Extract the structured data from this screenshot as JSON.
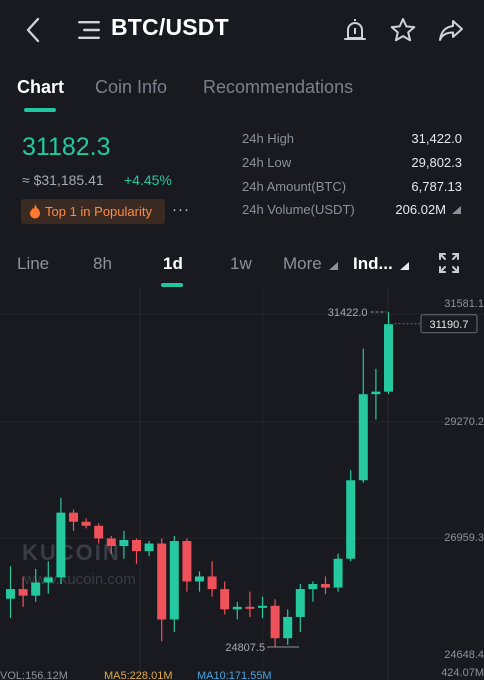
{
  "header": {
    "pair": "BTC/USDT",
    "icons": [
      "back-icon",
      "menu-icon",
      "alert-icon",
      "star-icon",
      "share-icon"
    ]
  },
  "tabs": [
    {
      "label": "Chart",
      "active": true
    },
    {
      "label": "Coin Info",
      "active": false
    },
    {
      "label": "Recommendations",
      "active": false
    }
  ],
  "price": {
    "last": "31182.3",
    "approx": "≈ $31,185.41",
    "change": "+4.45%",
    "badge": "Top 1 in Popularity",
    "more": "···"
  },
  "stats": [
    {
      "label": "24h High",
      "value": "31,422.0"
    },
    {
      "label": "24h Low",
      "value": "29,802.3"
    },
    {
      "label": "24h Amount(BTC)",
      "value": "6,787.13"
    },
    {
      "label": "24h Volume(USDT)",
      "value": "206.02M"
    }
  ],
  "intervals": [
    {
      "label": "Line"
    },
    {
      "label": "8h"
    },
    {
      "label": "1d",
      "active": true
    },
    {
      "label": "1w"
    },
    {
      "label": "More"
    },
    {
      "label": "Ind..."
    }
  ],
  "colors": {
    "up": "#24c9a0",
    "down": "#f0525c",
    "bg": "#181a20",
    "accent": "#1fc6a0"
  },
  "chart_data": {
    "type": "candlestick",
    "price_axis": [
      "31581.1",
      "29270.2",
      "26959.3",
      "24648.4"
    ],
    "current_price_label": "31190.7",
    "high_marker": "31422.0",
    "low_marker": "24807.5",
    "volume_axis_label": "424.07M",
    "watermark_brand": "KUCOIN",
    "watermark_url": "www.kucoin.com",
    "indicators": {
      "vol": "VOL:156.12M",
      "ma5": "MA5:228.01M",
      "ma10": "MA10:171.55M"
    },
    "candles": [
      {
        "o": 25760,
        "h": 26400,
        "l": 25380,
        "c": 25950
      },
      {
        "o": 25950,
        "h": 26200,
        "l": 25600,
        "c": 25820
      },
      {
        "o": 25820,
        "h": 26350,
        "l": 25700,
        "c": 26080
      },
      {
        "o": 26080,
        "h": 26500,
        "l": 25860,
        "c": 26180
      },
      {
        "o": 26180,
        "h": 27750,
        "l": 26050,
        "c": 27460
      },
      {
        "o": 27460,
        "h": 27520,
        "l": 27100,
        "c": 27280
      },
      {
        "o": 27280,
        "h": 27350,
        "l": 27150,
        "c": 27200
      },
      {
        "o": 27200,
        "h": 27250,
        "l": 26850,
        "c": 26950
      },
      {
        "o": 26950,
        "h": 27000,
        "l": 26650,
        "c": 26800
      },
      {
        "o": 26800,
        "h": 27100,
        "l": 26550,
        "c": 26920
      },
      {
        "o": 26920,
        "h": 26950,
        "l": 26450,
        "c": 26700
      },
      {
        "o": 26700,
        "h": 26900,
        "l": 26600,
        "c": 26850
      },
      {
        "o": 26850,
        "h": 26950,
        "l": 24920,
        "c": 25350
      },
      {
        "o": 25350,
        "h": 27000,
        "l": 25100,
        "c": 26900
      },
      {
        "o": 26900,
        "h": 26950,
        "l": 25900,
        "c": 26100
      },
      {
        "o": 26100,
        "h": 26300,
        "l": 25900,
        "c": 26200
      },
      {
        "o": 26200,
        "h": 26500,
        "l": 25800,
        "c": 25950
      },
      {
        "o": 25950,
        "h": 26100,
        "l": 25450,
        "c": 25550
      },
      {
        "o": 25550,
        "h": 25700,
        "l": 25350,
        "c": 25600
      },
      {
        "o": 25600,
        "h": 25900,
        "l": 25400,
        "c": 25580
      },
      {
        "o": 25580,
        "h": 25800,
        "l": 25380,
        "c": 25620
      },
      {
        "o": 25620,
        "h": 25750,
        "l": 24807,
        "c": 24980
      },
      {
        "o": 24980,
        "h": 25550,
        "l": 24850,
        "c": 25400
      },
      {
        "o": 25400,
        "h": 26050,
        "l": 25100,
        "c": 25950
      },
      {
        "o": 25950,
        "h": 26100,
        "l": 25700,
        "c": 26050
      },
      {
        "o": 26050,
        "h": 26200,
        "l": 25850,
        "c": 25980
      },
      {
        "o": 25980,
        "h": 26650,
        "l": 25900,
        "c": 26550
      },
      {
        "o": 26550,
        "h": 28300,
        "l": 26500,
        "c": 28100
      },
      {
        "o": 28100,
        "h": 30700,
        "l": 28050,
        "c": 29800
      },
      {
        "o": 29800,
        "h": 30300,
        "l": 29300,
        "c": 29850
      },
      {
        "o": 29850,
        "h": 31422,
        "l": 29800,
        "c": 31182
      }
    ]
  }
}
